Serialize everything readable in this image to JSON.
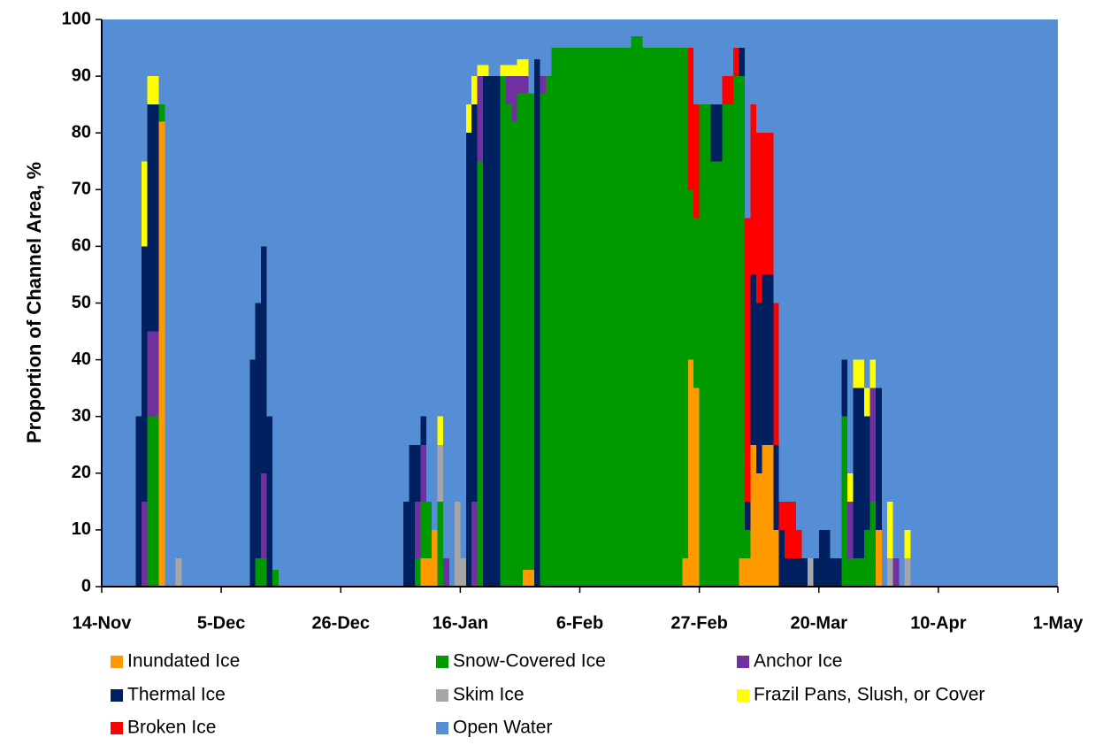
{
  "chart_data": {
    "type": "stacked-bar",
    "y_label": "Proportion of Channel Area, %",
    "xlim": [
      0,
      168
    ],
    "xticks": [
      {
        "value": 0,
        "label": "14-Nov"
      },
      {
        "value": 21,
        "label": "5-Dec"
      },
      {
        "value": 42,
        "label": "26-Dec"
      },
      {
        "value": 63,
        "label": "16-Jan"
      },
      {
        "value": 84,
        "label": "6-Feb"
      },
      {
        "value": 105,
        "label": "27-Feb"
      },
      {
        "value": 126,
        "label": "20-Mar"
      },
      {
        "value": 147,
        "label": "10-Apr"
      },
      {
        "value": 168,
        "label": "1-May"
      }
    ],
    "ylim": [
      0,
      100
    ],
    "yticks": [
      0,
      10,
      20,
      30,
      40,
      50,
      60,
      70,
      80,
      90,
      100
    ],
    "x": [
      6,
      7,
      8,
      9,
      10,
      13,
      26,
      27,
      28,
      29,
      30,
      53,
      54,
      55,
      56,
      57,
      58,
      59,
      60,
      62,
      63,
      64,
      65,
      66,
      67,
      68,
      69,
      70,
      71,
      72,
      73,
      74,
      75,
      76,
      77,
      78,
      79,
      80,
      81,
      82,
      83,
      84,
      85,
      86,
      87,
      88,
      89,
      90,
      91,
      92,
      93,
      94,
      95,
      96,
      97,
      98,
      99,
      100,
      101,
      102,
      103,
      104,
      105,
      106,
      107,
      108,
      109,
      110,
      111,
      112,
      113,
      114,
      115,
      116,
      117,
      118,
      119,
      120,
      121,
      122,
      123,
      124,
      125,
      126,
      127,
      128,
      129,
      130,
      131,
      132,
      133,
      134,
      135,
      136,
      138,
      139,
      141
    ],
    "series": [
      {
        "name": "Inundated Ice",
        "color": "#ff9900",
        "values": [
          0,
          0,
          0,
          0,
          82,
          0,
          0,
          0,
          0,
          0,
          0,
          0,
          0,
          0,
          5,
          5,
          10,
          0,
          0,
          0,
          0,
          0,
          0,
          0,
          0,
          0,
          0,
          0,
          0,
          0,
          0,
          3,
          3,
          0,
          0,
          0,
          0,
          0,
          0,
          0,
          0,
          0,
          0,
          0,
          0,
          0,
          0,
          0,
          0,
          0,
          0,
          0,
          0,
          0,
          0,
          0,
          0,
          0,
          0,
          5,
          40,
          35,
          0,
          0,
          0,
          0,
          0,
          0,
          0,
          5,
          5,
          25,
          20,
          25,
          25,
          10,
          0,
          0,
          0,
          0,
          0,
          0,
          0,
          0,
          0,
          0,
          0,
          0,
          0,
          0,
          0,
          0,
          0,
          10,
          0,
          0,
          0
        ]
      },
      {
        "name": "Snow-Covered Ice",
        "color": "#009900",
        "values": [
          0,
          0,
          30,
          30,
          3,
          0,
          0,
          5,
          5,
          0,
          3,
          0,
          0,
          5,
          10,
          10,
          0,
          15,
          0,
          0,
          0,
          0,
          0,
          75,
          0,
          0,
          0,
          90,
          85,
          82,
          87,
          84,
          84,
          0,
          87,
          90,
          95,
          95,
          95,
          95,
          95,
          95,
          95,
          95,
          95,
          95,
          95,
          95,
          95,
          95,
          97,
          97,
          95,
          95,
          95,
          95,
          95,
          95,
          95,
          90,
          30,
          30,
          85,
          85,
          75,
          75,
          85,
          85,
          90,
          85,
          5,
          0,
          0,
          0,
          0,
          0,
          0,
          0,
          0,
          0,
          0,
          0,
          0,
          0,
          0,
          0,
          0,
          30,
          5,
          5,
          5,
          10,
          15,
          0,
          0,
          0,
          0
        ]
      },
      {
        "name": "Anchor Ice",
        "color": "#7030a0",
        "values": [
          0,
          15,
          15,
          15,
          0,
          0,
          0,
          0,
          15,
          0,
          0,
          0,
          0,
          10,
          10,
          0,
          0,
          0,
          5,
          0,
          0,
          0,
          15,
          15,
          0,
          0,
          0,
          0,
          5,
          8,
          3,
          3,
          0,
          0,
          3,
          0,
          0,
          0,
          0,
          0,
          0,
          0,
          0,
          0,
          0,
          0,
          0,
          0,
          0,
          0,
          0,
          0,
          0,
          0,
          0,
          0,
          0,
          0,
          0,
          0,
          0,
          0,
          0,
          0,
          0,
          0,
          0,
          0,
          0,
          0,
          0,
          0,
          0,
          0,
          0,
          0,
          0,
          0,
          0,
          0,
          0,
          0,
          0,
          0,
          0,
          0,
          0,
          0,
          10,
          0,
          0,
          0,
          20,
          0,
          0,
          5,
          0
        ]
      },
      {
        "name": "Thermal Ice",
        "color": "#002060",
        "values": [
          30,
          45,
          40,
          40,
          0,
          0,
          40,
          45,
          40,
          30,
          0,
          15,
          25,
          10,
          5,
          0,
          0,
          0,
          0,
          0,
          0,
          80,
          70,
          0,
          90,
          90,
          90,
          0,
          0,
          0,
          0,
          0,
          0,
          93,
          0,
          0,
          0,
          0,
          0,
          0,
          0,
          0,
          0,
          0,
          0,
          0,
          0,
          0,
          0,
          0,
          0,
          0,
          0,
          0,
          0,
          0,
          0,
          0,
          0,
          0,
          0,
          0,
          0,
          0,
          10,
          10,
          0,
          0,
          0,
          5,
          5,
          30,
          30,
          30,
          30,
          15,
          10,
          5,
          5,
          5,
          5,
          0,
          5,
          10,
          10,
          5,
          5,
          10,
          0,
          30,
          30,
          20,
          0,
          25,
          0,
          0,
          0
        ]
      },
      {
        "name": "Skim Ice",
        "color": "#a6a6a6",
        "values": [
          0,
          0,
          0,
          0,
          0,
          5,
          0,
          0,
          0,
          0,
          0,
          0,
          0,
          0,
          0,
          0,
          0,
          10,
          0,
          15,
          5,
          0,
          0,
          0,
          0,
          0,
          0,
          0,
          0,
          0,
          0,
          0,
          0,
          0,
          0,
          0,
          0,
          0,
          0,
          0,
          0,
          0,
          0,
          0,
          0,
          0,
          0,
          0,
          0,
          0,
          0,
          0,
          0,
          0,
          0,
          0,
          0,
          0,
          0,
          0,
          0,
          0,
          0,
          0,
          0,
          0,
          0,
          0,
          0,
          0,
          0,
          0,
          0,
          0,
          0,
          0,
          0,
          0,
          0,
          0,
          0,
          5,
          0,
          0,
          0,
          0,
          0,
          0,
          0,
          0,
          0,
          0,
          0,
          0,
          5,
          0,
          5
        ]
      },
      {
        "name": "Frazil Pans, Slush, or Cover",
        "color": "#ffff00",
        "values": [
          0,
          15,
          5,
          5,
          0,
          0,
          0,
          0,
          0,
          0,
          0,
          0,
          0,
          0,
          0,
          0,
          0,
          5,
          0,
          0,
          0,
          5,
          5,
          2,
          2,
          0,
          0,
          2,
          2,
          2,
          3,
          3,
          0,
          0,
          0,
          0,
          0,
          0,
          0,
          0,
          0,
          0,
          0,
          0,
          0,
          0,
          0,
          0,
          0,
          0,
          0,
          0,
          0,
          0,
          0,
          0,
          0,
          0,
          0,
          0,
          0,
          0,
          0,
          0,
          0,
          0,
          0,
          0,
          0,
          0,
          0,
          0,
          0,
          0,
          0,
          0,
          0,
          0,
          0,
          0,
          0,
          0,
          0,
          0,
          0,
          0,
          0,
          0,
          5,
          5,
          5,
          5,
          5,
          0,
          10,
          0,
          5
        ]
      },
      {
        "name": "Broken Ice",
        "color": "#ff0000",
        "values": [
          0,
          0,
          0,
          0,
          0,
          0,
          0,
          0,
          0,
          0,
          0,
          0,
          0,
          0,
          0,
          0,
          0,
          0,
          0,
          0,
          0,
          0,
          0,
          0,
          0,
          0,
          0,
          0,
          0,
          0,
          0,
          0,
          0,
          0,
          0,
          0,
          0,
          0,
          0,
          0,
          0,
          0,
          0,
          0,
          0,
          0,
          0,
          0,
          0,
          0,
          0,
          0,
          0,
          0,
          0,
          0,
          0,
          0,
          0,
          0,
          25,
          20,
          0,
          0,
          0,
          0,
          5,
          5,
          5,
          0,
          50,
          30,
          30,
          25,
          25,
          25,
          5,
          10,
          10,
          5,
          0,
          0,
          0,
          0,
          0,
          0,
          0,
          0,
          0,
          0,
          0,
          0,
          0,
          0,
          0,
          0,
          0
        ]
      },
      {
        "name": "Open Water",
        "color": "#558ed5",
        "values": [
          70,
          25,
          10,
          10,
          15,
          95,
          60,
          50,
          40,
          70,
          97,
          85,
          75,
          75,
          70,
          85,
          90,
          70,
          95,
          85,
          95,
          15,
          10,
          8,
          8,
          10,
          10,
          8,
          8,
          8,
          7,
          7,
          13,
          7,
          10,
          10,
          5,
          5,
          5,
          5,
          5,
          5,
          5,
          5,
          5,
          5,
          5,
          5,
          5,
          5,
          3,
          3,
          5,
          5,
          5,
          5,
          5,
          5,
          5,
          5,
          5,
          15,
          15,
          15,
          15,
          15,
          10,
          10,
          5,
          5,
          35,
          15,
          20,
          20,
          20,
          50,
          85,
          85,
          85,
          90,
          95,
          95,
          95,
          90,
          90,
          95,
          95,
          60,
          80,
          60,
          60,
          65,
          60,
          65,
          85,
          95,
          90
        ]
      }
    ]
  }
}
